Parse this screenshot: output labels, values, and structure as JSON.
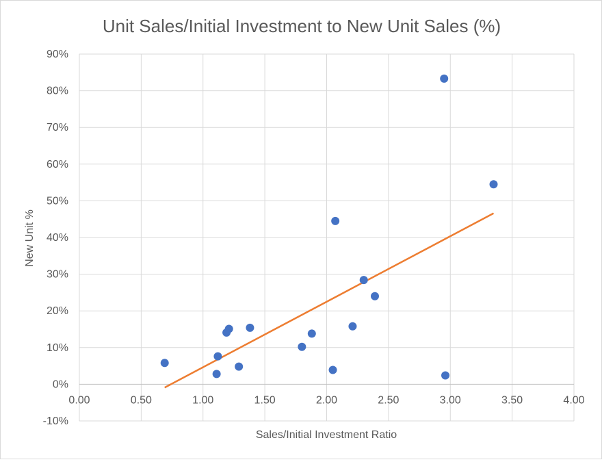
{
  "chart_data": {
    "type": "scatter",
    "title": "Unit Sales/Initial Investment to New Unit Sales (%)",
    "xlabel": "Sales/Initial Investment Ratio",
    "ylabel": "New Unit %",
    "xlim": [
      0,
      4
    ],
    "ylim": [
      -0.1,
      0.9
    ],
    "x_ticks": [
      "0.00",
      "0.50",
      "1.00",
      "1.50",
      "2.00",
      "2.50",
      "3.00",
      "3.50",
      "4.00"
    ],
    "y_ticks": [
      "-10%",
      "0%",
      "10%",
      "20%",
      "30%",
      "40%",
      "50%",
      "60%",
      "70%",
      "80%",
      "90%"
    ],
    "grid": true,
    "legend": "none",
    "series": [
      {
        "marker_color": "#4472c4",
        "points": [
          {
            "x": 0.69,
            "y": 0.058
          },
          {
            "x": 1.11,
            "y": 0.028
          },
          {
            "x": 1.12,
            "y": 0.076
          },
          {
            "x": 1.19,
            "y": 0.141
          },
          {
            "x": 1.21,
            "y": 0.151
          },
          {
            "x": 1.29,
            "y": 0.048
          },
          {
            "x": 1.38,
            "y": 0.154
          },
          {
            "x": 1.8,
            "y": 0.102
          },
          {
            "x": 1.88,
            "y": 0.138
          },
          {
            "x": 2.05,
            "y": 0.039
          },
          {
            "x": 2.07,
            "y": 0.445
          },
          {
            "x": 2.21,
            "y": 0.158
          },
          {
            "x": 2.3,
            "y": 0.284
          },
          {
            "x": 2.39,
            "y": 0.24
          },
          {
            "x": 2.95,
            "y": 0.833
          },
          {
            "x": 2.96,
            "y": 0.024
          },
          {
            "x": 3.35,
            "y": 0.545
          }
        ]
      }
    ],
    "trendline": {
      "type": "linear",
      "color": "#ed7d31",
      "x_start": 0.69,
      "y_start": -0.009,
      "x_end": 3.35,
      "y_end": 0.466
    }
  }
}
